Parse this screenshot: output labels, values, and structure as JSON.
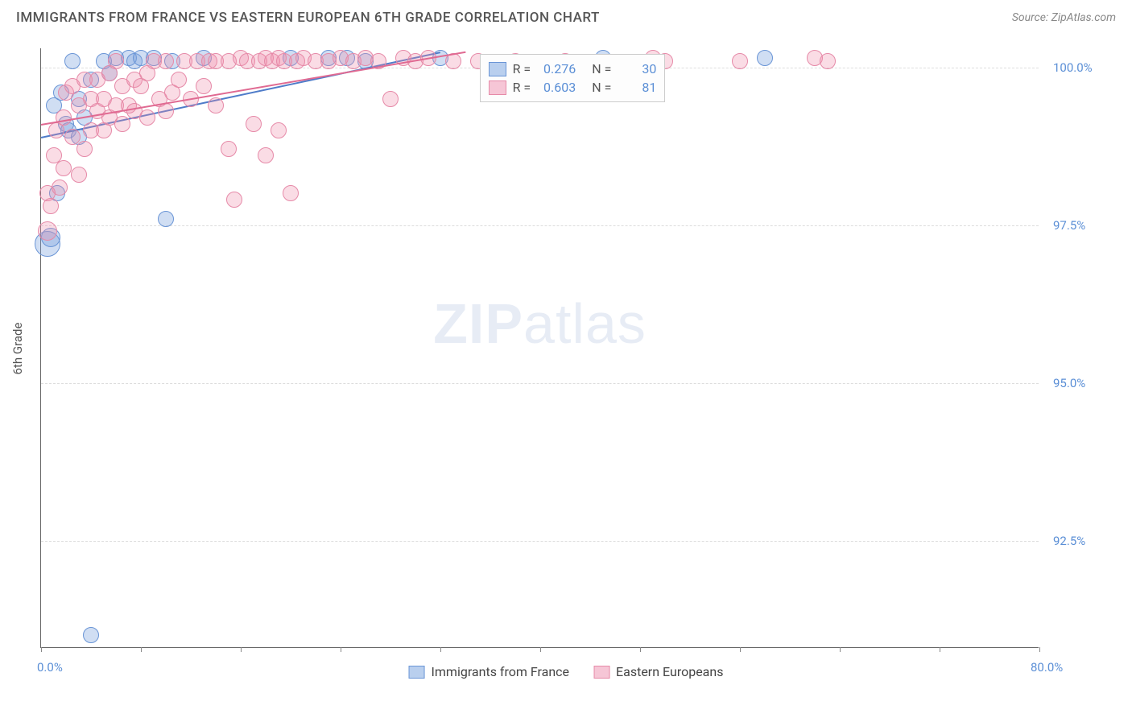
{
  "header": {
    "title": "IMMIGRANTS FROM FRANCE VS EASTERN EUROPEAN 6TH GRADE CORRELATION CHART",
    "source": "Source: ZipAtlas.com"
  },
  "chart": {
    "type": "scatter",
    "watermark": "ZIPatlas",
    "yaxis_label": "6th Grade",
    "background_color": "#ffffff",
    "grid_color": "#dddddd",
    "axis_color": "#666666",
    "tick_label_color": "#5b8fd6",
    "xlim": [
      0,
      80
    ],
    "ylim": [
      90.8,
      100.3
    ],
    "xtick_positions": [
      0,
      8,
      16,
      24,
      32,
      40,
      48,
      56,
      64,
      72,
      80
    ],
    "xminlabel": "0.0%",
    "xmaxlabel": "80.0%",
    "yticks": [
      {
        "v": 92.5,
        "label": "92.5%"
      },
      {
        "v": 95.0,
        "label": "95.0%"
      },
      {
        "v": 97.5,
        "label": "97.5%"
      },
      {
        "v": 100.0,
        "label": "100.0%"
      }
    ],
    "series": [
      {
        "id": "france",
        "label": "Immigrants from France",
        "fill": "rgba(120,160,220,0.35)",
        "stroke": "#6a95d6",
        "swatch_fill": "#b9cfee",
        "swatch_border": "#6a95d6",
        "R": "0.276",
        "N": "30",
        "marker_base_r": 10,
        "trend": {
          "x1": 0,
          "y1": 98.9,
          "x2": 32,
          "y2": 100.25,
          "color": "#4f7cc9",
          "width": 2
        },
        "points": [
          {
            "x": 0.5,
            "y": 97.2,
            "r": 16
          },
          {
            "x": 0.8,
            "y": 97.3,
            "r": 12
          },
          {
            "x": 1.0,
            "y": 99.4,
            "r": 10
          },
          {
            "x": 1.3,
            "y": 98.0,
            "r": 10
          },
          {
            "x": 1.6,
            "y": 99.6,
            "r": 10
          },
          {
            "x": 2.0,
            "y": 99.1,
            "r": 10
          },
          {
            "x": 2.2,
            "y": 99.0,
            "r": 10
          },
          {
            "x": 2.5,
            "y": 100.1,
            "r": 10
          },
          {
            "x": 3.0,
            "y": 98.9,
            "r": 10
          },
          {
            "x": 3.0,
            "y": 99.5,
            "r": 10
          },
          {
            "x": 3.5,
            "y": 99.2,
            "r": 10
          },
          {
            "x": 4.0,
            "y": 99.8,
            "r": 10
          },
          {
            "x": 4.0,
            "y": 91.0,
            "r": 10
          },
          {
            "x": 5.0,
            "y": 100.1,
            "r": 10
          },
          {
            "x": 5.5,
            "y": 99.9,
            "r": 10
          },
          {
            "x": 6.0,
            "y": 100.15,
            "r": 10
          },
          {
            "x": 7.0,
            "y": 100.15,
            "r": 10
          },
          {
            "x": 7.5,
            "y": 100.1,
            "r": 10
          },
          {
            "x": 8.0,
            "y": 100.15,
            "r": 10
          },
          {
            "x": 9.0,
            "y": 100.15,
            "r": 10
          },
          {
            "x": 10.0,
            "y": 97.6,
            "r": 10
          },
          {
            "x": 10.5,
            "y": 100.1,
            "r": 10
          },
          {
            "x": 13.0,
            "y": 100.15,
            "r": 10
          },
          {
            "x": 20.0,
            "y": 100.15,
            "r": 10
          },
          {
            "x": 23.0,
            "y": 100.15,
            "r": 10
          },
          {
            "x": 24.5,
            "y": 100.15,
            "r": 10
          },
          {
            "x": 26.0,
            "y": 100.1,
            "r": 10
          },
          {
            "x": 32.0,
            "y": 100.15,
            "r": 10
          },
          {
            "x": 45.0,
            "y": 100.15,
            "r": 10
          },
          {
            "x": 58.0,
            "y": 100.15,
            "r": 10
          }
        ]
      },
      {
        "id": "eastern",
        "label": "Eastern Europeans",
        "fill": "rgba(240,140,170,0.30)",
        "stroke": "#e68aa8",
        "swatch_fill": "#f6c6d6",
        "swatch_border": "#e68aa8",
        "R": "0.603",
        "N": "81",
        "marker_base_r": 10,
        "trend": {
          "x1": 0,
          "y1": 99.1,
          "x2": 34,
          "y2": 100.25,
          "color": "#e06a92",
          "width": 2
        },
        "points": [
          {
            "x": 0.5,
            "y": 98.0,
            "r": 10
          },
          {
            "x": 0.8,
            "y": 97.8,
            "r": 10
          },
          {
            "x": 0.5,
            "y": 97.4,
            "r": 12
          },
          {
            "x": 1.0,
            "y": 98.6,
            "r": 10
          },
          {
            "x": 1.2,
            "y": 99.0,
            "r": 10
          },
          {
            "x": 1.5,
            "y": 98.1,
            "r": 10
          },
          {
            "x": 1.8,
            "y": 99.2,
            "r": 10
          },
          {
            "x": 1.8,
            "y": 98.4,
            "r": 10
          },
          {
            "x": 2.0,
            "y": 99.6,
            "r": 10
          },
          {
            "x": 2.5,
            "y": 98.9,
            "r": 10
          },
          {
            "x": 2.5,
            "y": 99.7,
            "r": 10
          },
          {
            "x": 3.0,
            "y": 98.3,
            "r": 10
          },
          {
            "x": 3.0,
            "y": 99.4,
            "r": 10
          },
          {
            "x": 3.5,
            "y": 99.8,
            "r": 10
          },
          {
            "x": 3.5,
            "y": 98.7,
            "r": 10
          },
          {
            "x": 4.0,
            "y": 99.5,
            "r": 10
          },
          {
            "x": 4.0,
            "y": 99.0,
            "r": 10
          },
          {
            "x": 4.5,
            "y": 99.3,
            "r": 10
          },
          {
            "x": 4.5,
            "y": 99.8,
            "r": 10
          },
          {
            "x": 5.0,
            "y": 99.0,
            "r": 10
          },
          {
            "x": 5.0,
            "y": 99.5,
            "r": 10
          },
          {
            "x": 5.5,
            "y": 99.2,
            "r": 10
          },
          {
            "x": 5.5,
            "y": 99.9,
            "r": 10
          },
          {
            "x": 6.0,
            "y": 99.4,
            "r": 10
          },
          {
            "x": 6.0,
            "y": 100.1,
            "r": 10
          },
          {
            "x": 6.5,
            "y": 99.7,
            "r": 10
          },
          {
            "x": 6.5,
            "y": 99.1,
            "r": 10
          },
          {
            "x": 7.0,
            "y": 99.4,
            "r": 10
          },
          {
            "x": 7.5,
            "y": 99.8,
            "r": 10
          },
          {
            "x": 7.5,
            "y": 99.3,
            "r": 10
          },
          {
            "x": 8.0,
            "y": 99.7,
            "r": 10
          },
          {
            "x": 8.5,
            "y": 99.9,
            "r": 10
          },
          {
            "x": 8.5,
            "y": 99.2,
            "r": 10
          },
          {
            "x": 9.0,
            "y": 100.1,
            "r": 10
          },
          {
            "x": 9.5,
            "y": 99.5,
            "r": 10
          },
          {
            "x": 10.0,
            "y": 99.3,
            "r": 10
          },
          {
            "x": 10.0,
            "y": 100.1,
            "r": 10
          },
          {
            "x": 10.5,
            "y": 99.6,
            "r": 10
          },
          {
            "x": 11.0,
            "y": 99.8,
            "r": 10
          },
          {
            "x": 11.5,
            "y": 100.1,
            "r": 10
          },
          {
            "x": 12.0,
            "y": 99.5,
            "r": 10
          },
          {
            "x": 12.5,
            "y": 100.1,
            "r": 10
          },
          {
            "x": 13.0,
            "y": 99.7,
            "r": 10
          },
          {
            "x": 13.5,
            "y": 100.1,
            "r": 10
          },
          {
            "x": 14.0,
            "y": 100.1,
            "r": 10
          },
          {
            "x": 14.0,
            "y": 99.4,
            "r": 10
          },
          {
            "x": 15.0,
            "y": 100.1,
            "r": 10
          },
          {
            "x": 15.0,
            "y": 98.7,
            "r": 10
          },
          {
            "x": 15.5,
            "y": 97.9,
            "r": 10
          },
          {
            "x": 16.0,
            "y": 100.15,
            "r": 10
          },
          {
            "x": 16.5,
            "y": 100.1,
            "r": 10
          },
          {
            "x": 17.0,
            "y": 99.1,
            "r": 10
          },
          {
            "x": 17.5,
            "y": 100.1,
            "r": 10
          },
          {
            "x": 18.0,
            "y": 100.15,
            "r": 10
          },
          {
            "x": 18.0,
            "y": 98.6,
            "r": 10
          },
          {
            "x": 18.5,
            "y": 100.1,
            "r": 10
          },
          {
            "x": 19.0,
            "y": 99.0,
            "r": 10
          },
          {
            "x": 19.0,
            "y": 100.15,
            "r": 10
          },
          {
            "x": 19.5,
            "y": 100.1,
            "r": 10
          },
          {
            "x": 20.0,
            "y": 98.0,
            "r": 10
          },
          {
            "x": 20.5,
            "y": 100.1,
            "r": 10
          },
          {
            "x": 21.0,
            "y": 100.15,
            "r": 10
          },
          {
            "x": 22.0,
            "y": 100.1,
            "r": 10
          },
          {
            "x": 23.0,
            "y": 100.1,
            "r": 10
          },
          {
            "x": 24.0,
            "y": 100.15,
            "r": 10
          },
          {
            "x": 25.0,
            "y": 100.1,
            "r": 10
          },
          {
            "x": 26.0,
            "y": 100.15,
            "r": 10
          },
          {
            "x": 27.0,
            "y": 100.1,
            "r": 10
          },
          {
            "x": 28.0,
            "y": 99.5,
            "r": 10
          },
          {
            "x": 29.0,
            "y": 100.15,
            "r": 10
          },
          {
            "x": 30.0,
            "y": 100.1,
            "r": 10
          },
          {
            "x": 31.0,
            "y": 100.15,
            "r": 10
          },
          {
            "x": 33.0,
            "y": 100.1,
            "r": 10
          },
          {
            "x": 35.0,
            "y": 100.1,
            "r": 10
          },
          {
            "x": 38.0,
            "y": 100.1,
            "r": 10
          },
          {
            "x": 42.0,
            "y": 100.1,
            "r": 10
          },
          {
            "x": 49.0,
            "y": 100.15,
            "r": 10
          },
          {
            "x": 50.0,
            "y": 100.1,
            "r": 10
          },
          {
            "x": 56.0,
            "y": 100.1,
            "r": 10
          },
          {
            "x": 62.0,
            "y": 100.15,
            "r": 10
          },
          {
            "x": 63.0,
            "y": 100.1,
            "r": 10
          }
        ]
      }
    ],
    "legend_box": {
      "left_pct": 44,
      "top_pct": 1
    }
  },
  "bottom_legend_labels": {
    "france": "Immigrants from France",
    "eastern": "Eastern Europeans"
  }
}
